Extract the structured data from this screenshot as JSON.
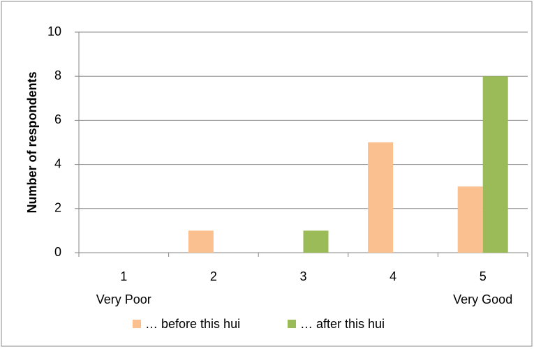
{
  "chart_data": {
    "type": "bar",
    "y_label": "Number of respondents",
    "categories": [
      "1",
      "2",
      "3",
      "4",
      "5"
    ],
    "category_sublabels": [
      "Very Poor",
      null,
      null,
      null,
      "Very Good"
    ],
    "series": [
      {
        "name": "… before this hui",
        "color": "#fac090",
        "values": [
          0,
          1,
          0,
          5,
          3
        ]
      },
      {
        "name": "… after this hui",
        "color": "#9bbb59",
        "values": [
          0,
          0,
          1,
          0,
          8
        ]
      }
    ],
    "ylim": [
      0,
      10
    ],
    "yticks": [
      0,
      2,
      4,
      6,
      8,
      10
    ],
    "grid": true,
    "legend": "bottom"
  }
}
